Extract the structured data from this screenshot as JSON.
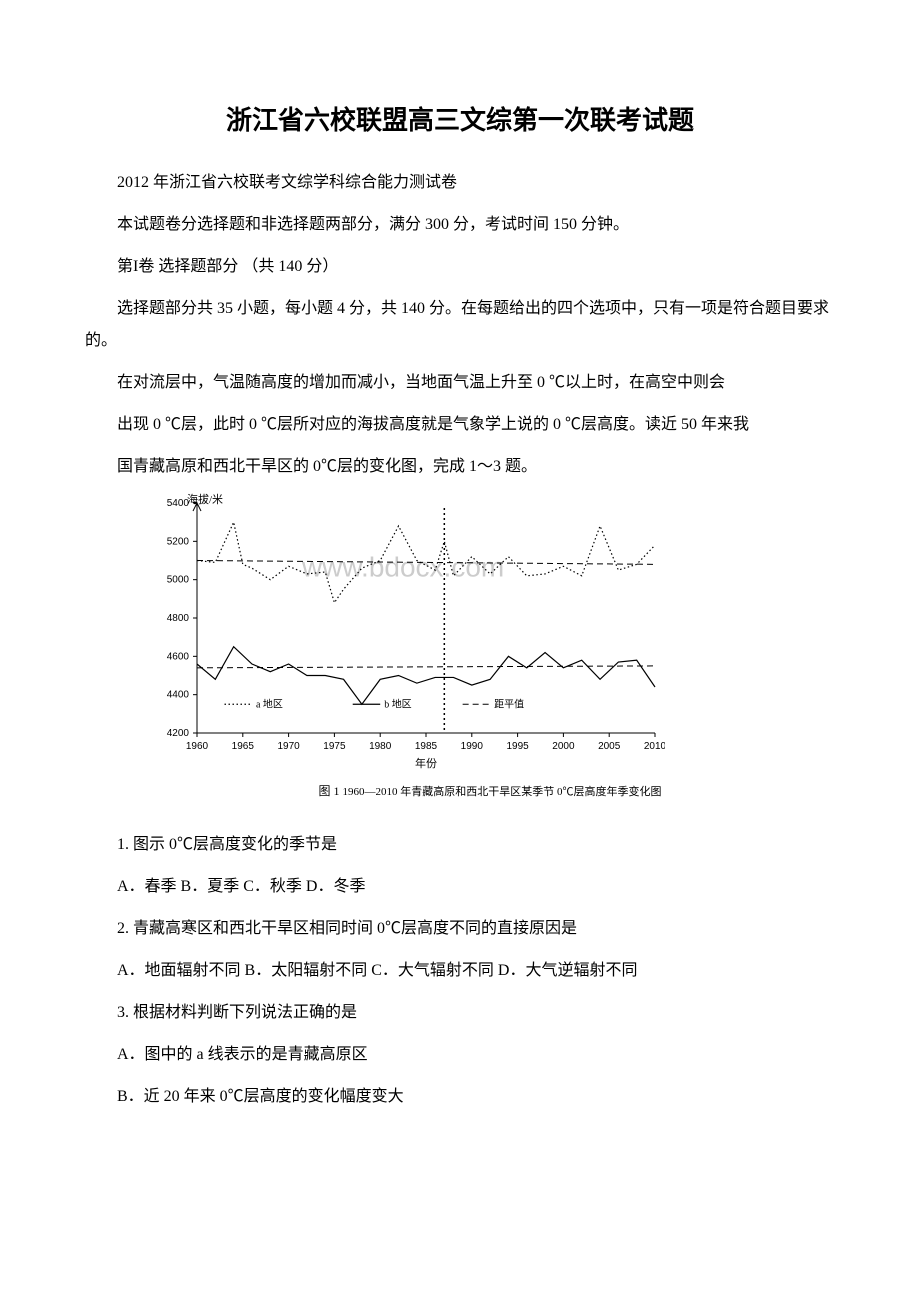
{
  "title": "浙江省六校联盟高三文综第一次联考试题",
  "paragraphs": {
    "p1": "2012 年浙江省六校联考文综学科综合能力测试卷",
    "p2": "本试题卷分选择题和非选择题两部分，满分 300 分，考试时间 150 分钟。",
    "p3": "第I卷 选择题部分 （共 140 分）",
    "p4": "选择题部分共 35 小题，每小题 4 分，共 140 分。在每题给出的四个选项中，只有一项是符合题目要求的。",
    "p5": "在对流层中，气温随高度的增加而减小，当地面气温上升至 0 ℃以上时，在高空中则会",
    "p6": "出现 0 ℃层，此时 0 ℃层所对应的海拔高度就是气象学上说的 0 ℃层高度。读近 50 年来我",
    "p7": "国青藏高原和西北干旱区的 0℃层的变化图，完成 1～3 题。"
  },
  "chart": {
    "type": "line",
    "ylabel": "海拔/米",
    "xlabel": "年份",
    "caption_prefix": "图 1",
    "caption": "1960—2010 年青藏高原和西北干旱区某季节 0℃层高度年季变化图",
    "ylim": [
      4200,
      5400
    ],
    "ytick_step": 200,
    "yticks": [
      4200,
      4400,
      4600,
      4800,
      5000,
      5200,
      5400
    ],
    "xlim": [
      1960,
      2010
    ],
    "xticks": [
      1960,
      1965,
      1970,
      1975,
      1980,
      1985,
      1990,
      1995,
      2000,
      2005,
      2010
    ],
    "legend": {
      "a": "a 地区",
      "b": "b 地区",
      "avg": "距平值"
    },
    "styles": {
      "a_line": "dotted",
      "b_line": "solid",
      "avg_line": "dashed",
      "line_color": "#000000",
      "axis_color": "#000000",
      "background": "#ffffff",
      "line_width": 1.2,
      "font_size_axis": 10,
      "font_size_label": 11
    },
    "watermark": {
      "text": "www.bdocx.com",
      "color": "#cccccc",
      "fontsize": 28
    },
    "vertical_marker": {
      "x": 1987,
      "style": "dotted",
      "color": "#000000"
    },
    "series_a": {
      "x": [
        1960,
        1962,
        1964,
        1965,
        1966,
        1968,
        1970,
        1972,
        1974,
        1975,
        1976,
        1978,
        1980,
        1982,
        1984,
        1986,
        1987,
        1988,
        1990,
        1992,
        1994,
        1996,
        1998,
        2000,
        2002,
        2004,
        2006,
        2008,
        2010
      ],
      "y": [
        5100,
        5090,
        5300,
        5080,
        5060,
        5000,
        5070,
        5030,
        5040,
        4880,
        4950,
        5060,
        5100,
        5280,
        5100,
        5050,
        5200,
        5020,
        5120,
        5030,
        5120,
        5020,
        5030,
        5070,
        5020,
        5280,
        5050,
        5080,
        5180
      ]
    },
    "series_a_trend": {
      "x": [
        1960,
        2010
      ],
      "y": [
        5100,
        5080
      ]
    },
    "series_b": {
      "x": [
        1960,
        1962,
        1964,
        1966,
        1968,
        1970,
        1972,
        1974,
        1976,
        1978,
        1980,
        1982,
        1984,
        1986,
        1988,
        1990,
        1992,
        1994,
        1996,
        1998,
        2000,
        2002,
        2004,
        2006,
        2008,
        2010
      ],
      "y": [
        4560,
        4480,
        4650,
        4560,
        4520,
        4560,
        4500,
        4500,
        4480,
        4350,
        4480,
        4500,
        4460,
        4490,
        4490,
        4450,
        4480,
        4600,
        4540,
        4620,
        4540,
        4580,
        4480,
        4570,
        4580,
        4440
      ]
    },
    "series_b_trend": {
      "x": [
        1960,
        2010
      ],
      "y": [
        4540,
        4550
      ]
    }
  },
  "questions": {
    "q1": "1. 图示 0℃层高度变化的季节是",
    "q1_opts": "A．春季 B．夏季 C．秋季 D．冬季",
    "q2": "2. 青藏高寒区和西北干旱区相同时间 0℃层高度不同的直接原因是",
    "q2_opts": "A．地面辐射不同 B．太阳辐射不同 C．大气辐射不同 D．大气逆辐射不同",
    "q3": "3. 根据材料判断下列说法正确的是",
    "q3_a": "A．图中的 a 线表示的是青藏高原区",
    "q3_b": "B．近 20 年来 0℃层高度的变化幅度变大"
  }
}
